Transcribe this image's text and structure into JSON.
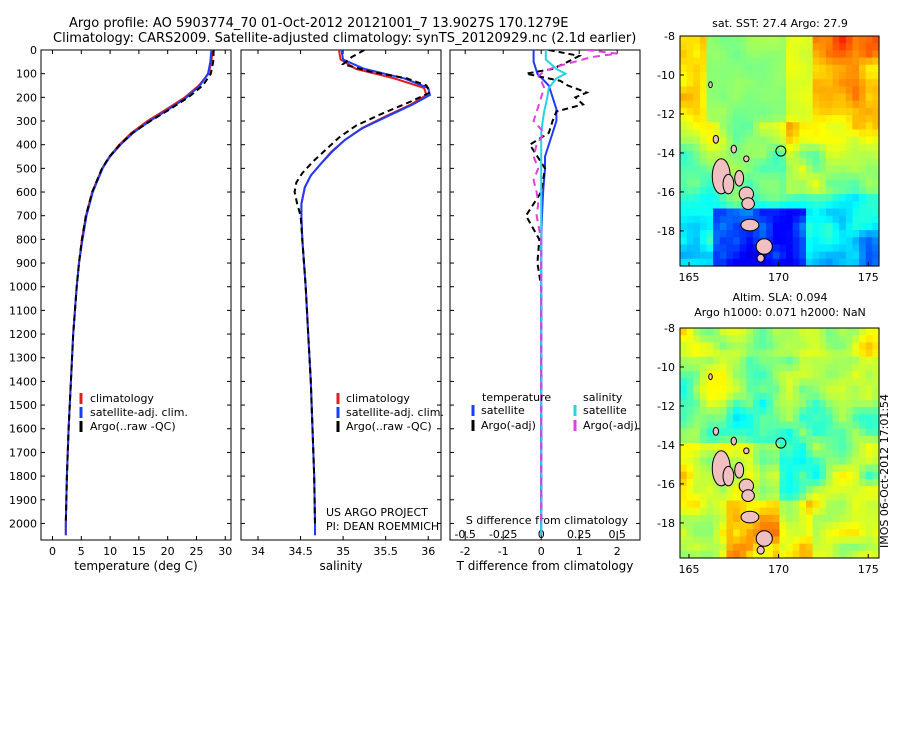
{
  "header": {
    "line1": "Argo profile: AO 5903774_70 01-Oct-2012 20121001_7 13.9027S 170.1279E",
    "line2": "Climatology: CARS2009. Satellite-adjusted climatology: synTS_20120929.nc (2.1d earlier)"
  },
  "timestamp": "IMOS 06-Oct-2012 17:01:54",
  "credits": {
    "line1": "US ARGO PROJECT",
    "line2": "PI: DEAN ROEMMICH"
  },
  "colors": {
    "climatology": "#e02020",
    "satellite": "#1f3bff",
    "argo": "#000000",
    "sat_sal": "#26d4e0",
    "argo_adj": "#e040e0"
  },
  "chart_data": [
    {
      "type": "line",
      "name": "temperature-profile",
      "xlabel": "temperature (deg C)",
      "ylabel": "",
      "xlim": [
        -2,
        31
      ],
      "ylim": [
        2070,
        0
      ],
      "xticks": [
        0,
        5,
        10,
        15,
        20,
        25,
        30
      ],
      "yticks": [
        0,
        100,
        200,
        300,
        400,
        500,
        600,
        700,
        800,
        900,
        1000,
        1100,
        1200,
        1300,
        1400,
        1500,
        1600,
        1700,
        1800,
        1900,
        2000
      ],
      "legend": [
        "climatology",
        "satellite-adj. clim.",
        "Argo(..raw -QC)"
      ],
      "series": [
        {
          "name": "climatology",
          "color": "#e02020",
          "dash": "",
          "depth": [
            0,
            50,
            100,
            150,
            200,
            250,
            300,
            350,
            400,
            450,
            500,
            600,
            700,
            800,
            900,
            1000,
            1200,
            1400,
            1600,
            1800,
            2000,
            2050
          ],
          "values": [
            27.8,
            27.6,
            27.1,
            25.4,
            23.0,
            19.8,
            16.5,
            13.7,
            11.6,
            9.9,
            8.6,
            6.9,
            5.8,
            5.1,
            4.6,
            4.2,
            3.6,
            3.2,
            2.8,
            2.5,
            2.3,
            2.3
          ]
        },
        {
          "name": "satellite-adj. clim.",
          "color": "#1f3bff",
          "dash": "",
          "depth": [
            0,
            50,
            100,
            150,
            200,
            250,
            300,
            350,
            400,
            450,
            500,
            600,
            700,
            800,
            900,
            1000,
            1200,
            1400,
            1600,
            1800,
            2000,
            2050
          ],
          "values": [
            27.6,
            27.4,
            27.0,
            25.6,
            23.3,
            20.2,
            16.9,
            14.0,
            11.8,
            10.0,
            8.7,
            7.0,
            5.9,
            5.2,
            4.6,
            4.2,
            3.6,
            3.2,
            2.8,
            2.5,
            2.3,
            2.3
          ]
        },
        {
          "name": "Argo(..raw -QC)",
          "color": "#000000",
          "dash": "6,4",
          "depth": [
            0,
            50,
            100,
            150,
            200,
            250,
            300,
            350,
            400,
            450,
            500,
            600,
            700,
            800,
            900,
            1000,
            1200,
            1400,
            1600,
            1800,
            2000
          ],
          "values": [
            28.0,
            27.9,
            27.5,
            26.1,
            23.6,
            20.4,
            17.0,
            13.9,
            11.7,
            9.9,
            8.6,
            6.9,
            5.8,
            5.1,
            4.6,
            4.2,
            3.6,
            3.2,
            2.8,
            2.5,
            2.3
          ]
        }
      ]
    },
    {
      "type": "line",
      "name": "salinity-profile",
      "xlabel": "salinity",
      "xlim": [
        33.8,
        36.15
      ],
      "ylim": [
        2070,
        0
      ],
      "xticks": [
        34,
        34.5,
        35,
        35.5,
        36
      ],
      "legend": [
        "climatology",
        "satellite-adj. clim.",
        "Argo(..raw -QC)"
      ],
      "series": [
        {
          "name": "climatology",
          "color": "#e02020",
          "dash": "",
          "depth": [
            0,
            40,
            80,
            120,
            160,
            190,
            230,
            280,
            330,
            380,
            430,
            480,
            530,
            580,
            650,
            700,
            800,
            900,
            1000,
            1200,
            1400,
            1600,
            1800,
            2000,
            2050
          ],
          "values": [
            34.95,
            34.97,
            35.15,
            35.6,
            35.95,
            35.98,
            35.8,
            35.5,
            35.22,
            35.02,
            34.86,
            34.74,
            34.62,
            34.55,
            34.51,
            34.51,
            34.52,
            34.54,
            34.56,
            34.59,
            34.62,
            34.64,
            34.66,
            34.67,
            34.67
          ]
        },
        {
          "name": "satellite-adj. clim.",
          "color": "#1f3bff",
          "dash": "",
          "depth": [
            0,
            40,
            80,
            120,
            160,
            190,
            230,
            280,
            330,
            380,
            430,
            480,
            530,
            580,
            650,
            700,
            800,
            900,
            1000,
            1200,
            1400,
            1600,
            1800,
            2000,
            2050
          ],
          "values": [
            34.98,
            35.0,
            35.25,
            35.72,
            36.0,
            36.02,
            35.82,
            35.52,
            35.23,
            35.02,
            34.87,
            34.74,
            34.62,
            34.55,
            34.51,
            34.51,
            34.52,
            34.54,
            34.56,
            34.59,
            34.62,
            34.64,
            34.66,
            34.67,
            34.67
          ]
        },
        {
          "name": "Argo(..raw -QC)",
          "color": "#000000",
          "dash": "6,4",
          "depth": [
            0,
            30,
            60,
            90,
            120,
            150,
            180,
            220,
            270,
            320,
            370,
            420,
            470,
            520,
            560,
            600,
            650,
            700,
            800,
            900,
            1000,
            1200,
            1400,
            1600,
            1800,
            2000
          ],
          "values": [
            35.25,
            35.1,
            35.0,
            35.3,
            35.75,
            35.98,
            36.02,
            35.78,
            35.45,
            35.15,
            34.95,
            34.8,
            34.65,
            34.52,
            34.45,
            34.43,
            34.46,
            34.5,
            34.52,
            34.54,
            34.56,
            34.59,
            34.62,
            34.64,
            34.66,
            34.67
          ]
        }
      ],
      "credits": "US ARGO PROJECT / PI: DEAN ROEMMICH"
    },
    {
      "type": "line",
      "name": "difference-profile",
      "xlabel": "T difference from climatology",
      "xlabel_top": "S difference from climatology",
      "xlim": [
        -2.4,
        2.6
      ],
      "xticks": [
        -2,
        -1,
        0,
        1,
        2
      ],
      "xticks_top_labels": [
        "-0.5",
        "-0.25",
        "0",
        "0.25",
        "0.5"
      ],
      "xticks_top_values": [
        -0.5,
        -0.25,
        0,
        0.25,
        0.5
      ],
      "ylim": [
        2070,
        0
      ],
      "legend_headers": [
        "temperature",
        "salinity"
      ],
      "legend": [
        "satellite",
        "Argo(-adj)",
        "satellite",
        "Argo(-adj)"
      ],
      "series": [
        {
          "name": "T satellite",
          "color": "#1f3bff",
          "dash": "",
          "depth": [
            0,
            50,
            100,
            150,
            200,
            250,
            300,
            350,
            400,
            450,
            500,
            600,
            700,
            800,
            1000,
            1500,
            2050
          ],
          "values": [
            -0.2,
            -0.2,
            -0.1,
            0.2,
            0.3,
            0.4,
            0.4,
            0.3,
            0.2,
            0.1,
            0.1,
            0.05,
            0.02,
            0.0,
            0.0,
            0.0,
            0.0
          ]
        },
        {
          "name": "T Argo(-adj)",
          "color": "#000000",
          "dash": "6,4",
          "depth": [
            0,
            25,
            50,
            80,
            100,
            130,
            150,
            180,
            200,
            230,
            260,
            300,
            350,
            400,
            450,
            500,
            600,
            700,
            800,
            900,
            1000,
            1500,
            2000
          ],
          "values": [
            0.2,
            1.0,
            0.7,
            0.3,
            -0.4,
            0.5,
            0.7,
            1.2,
            0.9,
            1.1,
            0.4,
            0.3,
            0.2,
            -0.3,
            -0.1,
            0.1,
            0.0,
            -0.4,
            -0.05,
            -0.1,
            0.0,
            0.0,
            0.0
          ]
        },
        {
          "name": "S satellite",
          "color": "#26d4e0",
          "dash": "",
          "depth": [
            0,
            40,
            80,
            100,
            120,
            160,
            200,
            260,
            300,
            350,
            400,
            450,
            500,
            600,
            700,
            800,
            1000,
            1500,
            2050
          ],
          "values": [
            0.03,
            0.03,
            0.1,
            0.16,
            0.1,
            0.05,
            0.04,
            0.02,
            0.01,
            0.0,
            0.0,
            0.0,
            0.0,
            0.0,
            0.0,
            0.0,
            0.0,
            0.0,
            0.0
          ]
        },
        {
          "name": "S Argo(-adj)",
          "color": "#e040e0",
          "dash": "7,5",
          "depth": [
            0,
            15,
            30,
            50,
            70,
            90,
            110,
            130,
            160,
            200,
            240,
            300,
            350,
            400,
            450,
            500,
            550,
            600,
            650,
            700,
            800,
            1000,
            1500,
            2000
          ],
          "values": [
            0.3,
            0.5,
            0.33,
            0.22,
            0.1,
            0.02,
            -0.02,
            0.0,
            0.02,
            0.0,
            -0.02,
            -0.05,
            0.02,
            -0.03,
            -0.05,
            -0.02,
            -0.05,
            -0.03,
            -0.02,
            -0.03,
            0.0,
            0.0,
            0.0,
            0.0
          ]
        }
      ]
    },
    {
      "type": "heatmap",
      "name": "sst-map",
      "title": "sat. SST: 27.4  Argo: 27.9",
      "xticks": [
        165,
        170,
        175
      ],
      "yticks": [
        -8,
        -10,
        -12,
        -14,
        -16,
        -18
      ],
      "xlim": [
        164.5,
        175.6
      ],
      "ylim": [
        -19.8,
        -8
      ],
      "marker": {
        "lon": 170.1279,
        "lat": -13.9027
      }
    },
    {
      "type": "heatmap",
      "name": "sla-map",
      "title_line1": "Altim. SLA: 0.094",
      "title_line2": "Argo h1000: 0.071  h2000: NaN",
      "xticks": [
        165,
        170,
        175
      ],
      "yticks": [
        -8,
        -10,
        -12,
        -14,
        -16,
        -18
      ],
      "xlim": [
        164.5,
        175.6
      ],
      "ylim": [
        -19.8,
        -8
      ],
      "marker": {
        "lon": 170.1279,
        "lat": -13.9027
      }
    }
  ]
}
